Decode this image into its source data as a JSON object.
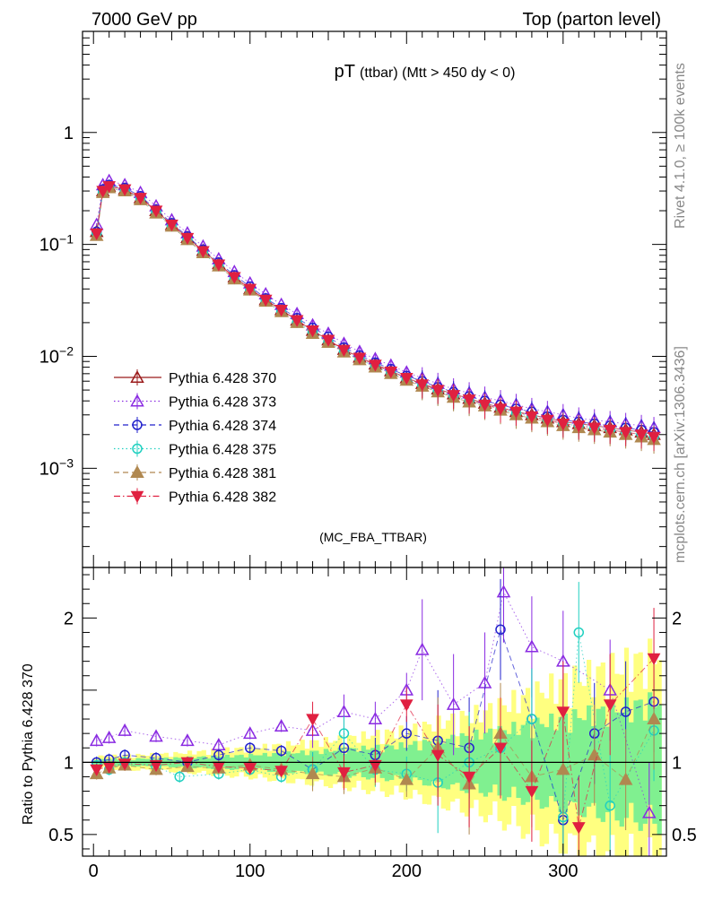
{
  "header": {
    "left": "7000 GeV pp",
    "right": "Top (parton level)"
  },
  "side_labels": {
    "upper": "Rivet 4.1.0, ≥ 100k events",
    "lower": "mcplots.cern.ch [arXiv:1306.3436]"
  },
  "chart_data": [
    {
      "panel": "main",
      "type": "scatter",
      "title_main": "pT",
      "title_sub": "(ttbar) (Mtt > 450 dy < 0)",
      "watermark": "(MC_FBA_TTBAR)",
      "yscale": "log",
      "ylim": [
        0.00013,
        8
      ],
      "xlim": [
        -7,
        366
      ],
      "ytick_labels": [
        {
          "value": 1,
          "base": "1",
          "exp": ""
        },
        {
          "value": 0.1,
          "base": "10",
          "exp": "−1"
        },
        {
          "value": 0.01,
          "base": "10",
          "exp": "−2"
        },
        {
          "value": 0.001,
          "base": "10",
          "exp": "−3"
        }
      ],
      "series": [
        {
          "name": "Pythia 6.428 370",
          "color": "#9b1b1b",
          "marker": "triangle-open",
          "line": "solid",
          "x": [
            2,
            6,
            10,
            20,
            30,
            40,
            50,
            60,
            70,
            80,
            90,
            100,
            110,
            120,
            130,
            140,
            150,
            160,
            170,
            180,
            190,
            200,
            210,
            220,
            230,
            240,
            250,
            260,
            270,
            280,
            290,
            300,
            310,
            320,
            330,
            340,
            350,
            358
          ],
          "y": [
            0.13,
            0.3,
            0.33,
            0.31,
            0.26,
            0.2,
            0.15,
            0.115,
            0.088,
            0.067,
            0.051,
            0.04,
            0.032,
            0.026,
            0.021,
            0.017,
            0.014,
            0.0115,
            0.0098,
            0.0085,
            0.0074,
            0.0064,
            0.0057,
            0.0051,
            0.0046,
            0.0042,
            0.0038,
            0.0035,
            0.0032,
            0.003,
            0.0028,
            0.0026,
            0.0025,
            0.0024,
            0.0023,
            0.0022,
            0.0021,
            0.002
          ]
        },
        {
          "name": "Pythia 6.428 373",
          "color": "#8a2be2",
          "marker": "triangle-open",
          "line": "dotted",
          "x": [
            2,
            6,
            10,
            20,
            30,
            40,
            50,
            60,
            70,
            80,
            90,
            100,
            110,
            120,
            130,
            140,
            150,
            160,
            170,
            180,
            190,
            200,
            210,
            220,
            230,
            240,
            250,
            260,
            270,
            280,
            290,
            300,
            310,
            320,
            330,
            340,
            350,
            358
          ],
          "y": [
            0.15,
            0.34,
            0.37,
            0.34,
            0.29,
            0.22,
            0.165,
            0.126,
            0.096,
            0.074,
            0.057,
            0.045,
            0.036,
            0.029,
            0.024,
            0.019,
            0.016,
            0.013,
            0.011,
            0.0095,
            0.0083,
            0.0072,
            0.0064,
            0.0057,
            0.0051,
            0.0047,
            0.0043,
            0.004,
            0.0037,
            0.0034,
            0.0032,
            0.003,
            0.0028,
            0.0027,
            0.0026,
            0.0025,
            0.0024,
            0.0023
          ]
        },
        {
          "name": "Pythia 6.428 374",
          "color": "#2222cc",
          "marker": "circle-open",
          "line": "dashed",
          "x": [
            2,
            6,
            10,
            20,
            30,
            40,
            50,
            60,
            70,
            80,
            90,
            100,
            110,
            120,
            130,
            140,
            150,
            160,
            170,
            180,
            190,
            200,
            210,
            220,
            230,
            240,
            250,
            260,
            270,
            280,
            290,
            300,
            310,
            320,
            330,
            340,
            350,
            358
          ],
          "y": [
            0.13,
            0.31,
            0.34,
            0.32,
            0.27,
            0.205,
            0.155,
            0.118,
            0.09,
            0.069,
            0.053,
            0.042,
            0.033,
            0.027,
            0.022,
            0.018,
            0.015,
            0.012,
            0.0102,
            0.0088,
            0.0077,
            0.0067,
            0.006,
            0.0053,
            0.0048,
            0.0044,
            0.004,
            0.0037,
            0.0034,
            0.0032,
            0.0029,
            0.0027,
            0.0026,
            0.0025,
            0.0024,
            0.0023,
            0.0022,
            0.0021
          ]
        },
        {
          "name": "Pythia 6.428 375",
          "color": "#20d0c0",
          "marker": "circle-open",
          "line": "dotted",
          "x": [
            2,
            6,
            10,
            20,
            30,
            40,
            50,
            60,
            70,
            80,
            90,
            100,
            110,
            120,
            130,
            140,
            150,
            160,
            170,
            180,
            190,
            200,
            210,
            220,
            230,
            240,
            250,
            260,
            270,
            280,
            290,
            300,
            310,
            320,
            330,
            340,
            350,
            358
          ],
          "y": [
            0.125,
            0.29,
            0.32,
            0.3,
            0.255,
            0.195,
            0.145,
            0.11,
            0.084,
            0.064,
            0.049,
            0.039,
            0.031,
            0.025,
            0.02,
            0.0165,
            0.0135,
            0.011,
            0.0094,
            0.0081,
            0.0071,
            0.0062,
            0.0055,
            0.0049,
            0.0044,
            0.004,
            0.0037,
            0.0034,
            0.0031,
            0.0029,
            0.0027,
            0.0025,
            0.0024,
            0.0023,
            0.0022,
            0.0021,
            0.002,
            0.0019
          ]
        },
        {
          "name": "Pythia 6.428 381",
          "color": "#b08850",
          "marker": "triangle-filled",
          "line": "dashed",
          "x": [
            2,
            6,
            10,
            20,
            30,
            40,
            50,
            60,
            70,
            80,
            90,
            100,
            110,
            120,
            130,
            140,
            150,
            160,
            170,
            180,
            190,
            200,
            210,
            220,
            230,
            240,
            250,
            260,
            270,
            280,
            290,
            300,
            310,
            320,
            330,
            340,
            350,
            358
          ],
          "y": [
            0.12,
            0.29,
            0.32,
            0.3,
            0.25,
            0.19,
            0.145,
            0.11,
            0.084,
            0.064,
            0.049,
            0.039,
            0.031,
            0.025,
            0.02,
            0.016,
            0.0133,
            0.0109,
            0.0093,
            0.008,
            0.007,
            0.0061,
            0.0054,
            0.0048,
            0.0043,
            0.0039,
            0.0036,
            0.0033,
            0.003,
            0.0028,
            0.0026,
            0.0024,
            0.0023,
            0.0022,
            0.0021,
            0.002,
            0.0019,
            0.0018
          ]
        },
        {
          "name": "Pythia 6.428 382",
          "color": "#e02040",
          "marker": "triangle-down-filled",
          "line": "dashdot",
          "x": [
            2,
            6,
            10,
            20,
            30,
            40,
            50,
            60,
            70,
            80,
            90,
            100,
            110,
            120,
            130,
            140,
            150,
            160,
            170,
            180,
            190,
            200,
            210,
            220,
            230,
            240,
            250,
            260,
            270,
            280,
            290,
            300,
            310,
            320,
            330,
            340,
            350,
            358
          ],
          "y": [
            0.125,
            0.3,
            0.33,
            0.31,
            0.26,
            0.2,
            0.15,
            0.114,
            0.087,
            0.066,
            0.051,
            0.04,
            0.032,
            0.026,
            0.021,
            0.017,
            0.014,
            0.0114,
            0.0097,
            0.0084,
            0.0073,
            0.0064,
            0.0056,
            0.005,
            0.0045,
            0.0041,
            0.0037,
            0.0034,
            0.0032,
            0.0029,
            0.0027,
            0.0025,
            0.0024,
            0.0023,
            0.0022,
            0.0021,
            0.002,
            0.0019
          ]
        }
      ]
    },
    {
      "panel": "ratio",
      "type": "scatter",
      "ylabel": "Ratio to Pythia 6.428 370",
      "ylim": [
        0.35,
        2.35
      ],
      "xlim": [
        -7,
        366
      ],
      "yticks": [
        0.5,
        1,
        2
      ],
      "ytick_labels": [
        "0.5",
        "1",
        "2"
      ],
      "xticks": [
        0,
        100,
        200,
        300
      ],
      "xtick_labels": [
        "0",
        "100",
        "200",
        "300"
      ],
      "bands": [
        {
          "name": "yellow band",
          "color": "#ffff80",
          "x": [
            0,
            50,
            100,
            150,
            200,
            250,
            300,
            350,
            360
          ],
          "half_width": [
            0.04,
            0.06,
            0.1,
            0.15,
            0.22,
            0.35,
            0.55,
            0.7,
            0.75
          ]
        },
        {
          "name": "green band",
          "color": "#80f090",
          "x": [
            0,
            50,
            100,
            150,
            200,
            250,
            300,
            350,
            360
          ],
          "half_width": [
            0.02,
            0.03,
            0.05,
            0.08,
            0.12,
            0.2,
            0.3,
            0.4,
            0.42
          ]
        }
      ],
      "series": [
        {
          "name": "Pythia 6.428 373",
          "x": [
            2,
            10,
            20,
            40,
            60,
            80,
            100,
            120,
            140,
            160,
            180,
            200,
            210,
            230,
            250,
            262,
            280,
            300,
            330,
            355
          ],
          "y": [
            1.15,
            1.17,
            1.22,
            1.18,
            1.15,
            1.12,
            1.2,
            1.25,
            1.22,
            1.35,
            1.3,
            1.5,
            1.78,
            1.4,
            1.55,
            2.18,
            1.8,
            1.7,
            1.5,
            0.65
          ]
        },
        {
          "name": "Pythia 6.428 374",
          "x": [
            2,
            10,
            20,
            40,
            60,
            80,
            100,
            120,
            140,
            160,
            180,
            200,
            220,
            240,
            260,
            280,
            300,
            320,
            340,
            358
          ],
          "y": [
            1.0,
            1.02,
            1.05,
            1.03,
            1.0,
            1.05,
            1.1,
            1.08,
            0.95,
            1.1,
            1.05,
            1.2,
            1.15,
            1.1,
            1.92,
            1.3,
            0.6,
            1.2,
            1.35,
            1.42
          ]
        },
        {
          "name": "Pythia 6.428 375",
          "x": [
            2,
            10,
            20,
            40,
            55,
            80,
            100,
            120,
            140,
            160,
            180,
            200,
            220,
            240,
            260,
            280,
            300,
            310,
            330,
            358
          ],
          "y": [
            0.98,
            0.95,
            1.0,
            0.97,
            0.9,
            0.92,
            0.95,
            0.9,
            0.95,
            1.2,
            0.95,
            0.92,
            0.86,
            1.0,
            1.1,
            1.3,
            0.62,
            1.9,
            0.7,
            1.22
          ]
        },
        {
          "name": "Pythia 6.428 381",
          "x": [
            2,
            10,
            20,
            40,
            60,
            80,
            100,
            120,
            140,
            160,
            180,
            200,
            220,
            240,
            260,
            280,
            300,
            320,
            340,
            358
          ],
          "y": [
            0.92,
            0.96,
            0.98,
            0.95,
            0.97,
            0.96,
            0.98,
            0.95,
            0.92,
            0.9,
            0.96,
            0.88,
            1.1,
            0.85,
            1.2,
            0.9,
            0.95,
            1.05,
            0.88,
            1.3
          ]
        },
        {
          "name": "Pythia 6.428 382",
          "x": [
            2,
            10,
            20,
            40,
            60,
            80,
            100,
            120,
            140,
            160,
            180,
            200,
            220,
            240,
            260,
            280,
            300,
            310,
            330,
            358
          ],
          "y": [
            0.95,
            0.97,
            0.99,
            0.98,
            1.0,
            0.97,
            0.96,
            0.94,
            1.3,
            0.93,
            0.98,
            1.4,
            1.05,
            0.9,
            1.1,
            0.8,
            1.35,
            0.55,
            1.4,
            1.72
          ]
        }
      ]
    }
  ]
}
